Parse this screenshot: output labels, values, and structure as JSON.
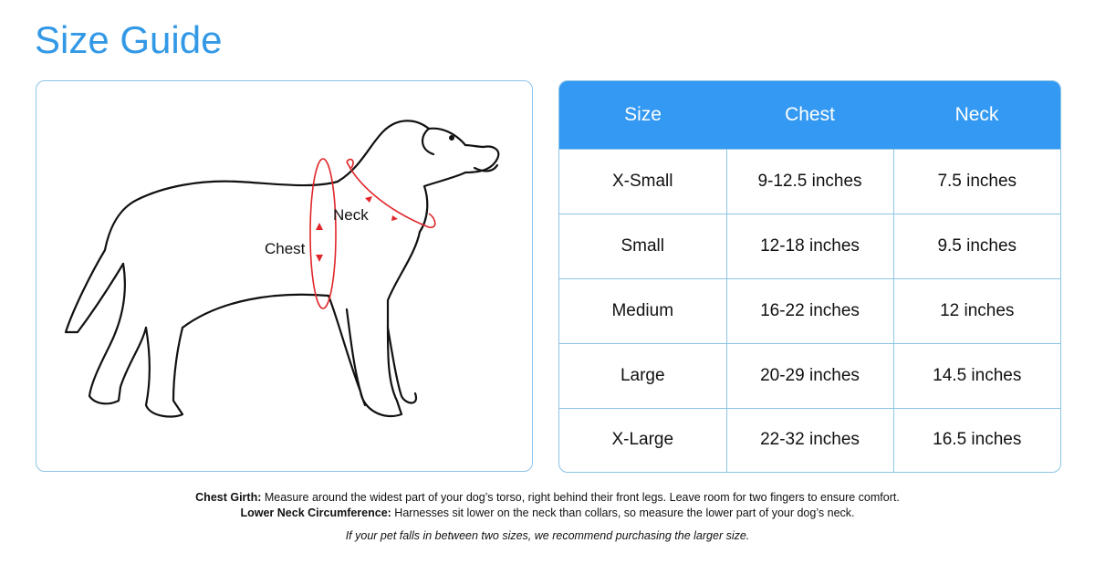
{
  "title": "Size Guide",
  "illustration": {
    "chest_label": "Chest",
    "neck_label": "Neck",
    "accent_color": "#e0262a"
  },
  "table": {
    "headers": [
      "Size",
      "Chest",
      "Neck"
    ],
    "rows": [
      [
        "X-Small",
        "9-12.5 inches",
        "7.5 inches"
      ],
      [
        "Small",
        "12-18 inches",
        "9.5 inches"
      ],
      [
        "Medium",
        "16-22 inches",
        "12 inches"
      ],
      [
        "Large",
        "20-29 inches",
        "14.5 inches"
      ],
      [
        "X-Large",
        "22-32 inches",
        "16.5 inches"
      ]
    ],
    "header_color": "#3399f3"
  },
  "notes": {
    "chest_term": "Chest Girth:",
    "chest_text": " Measure around the widest part of your dog’s torso, right behind their front legs. Leave room for two fingers to ensure comfort.",
    "neck_term": "Lower Neck Circumference:",
    "neck_text": " Harnesses sit lower on the neck than collars, so measure the lower part of your dog’s neck.",
    "tip": "If your pet falls in between two sizes, we recommend purchasing the larger size."
  }
}
